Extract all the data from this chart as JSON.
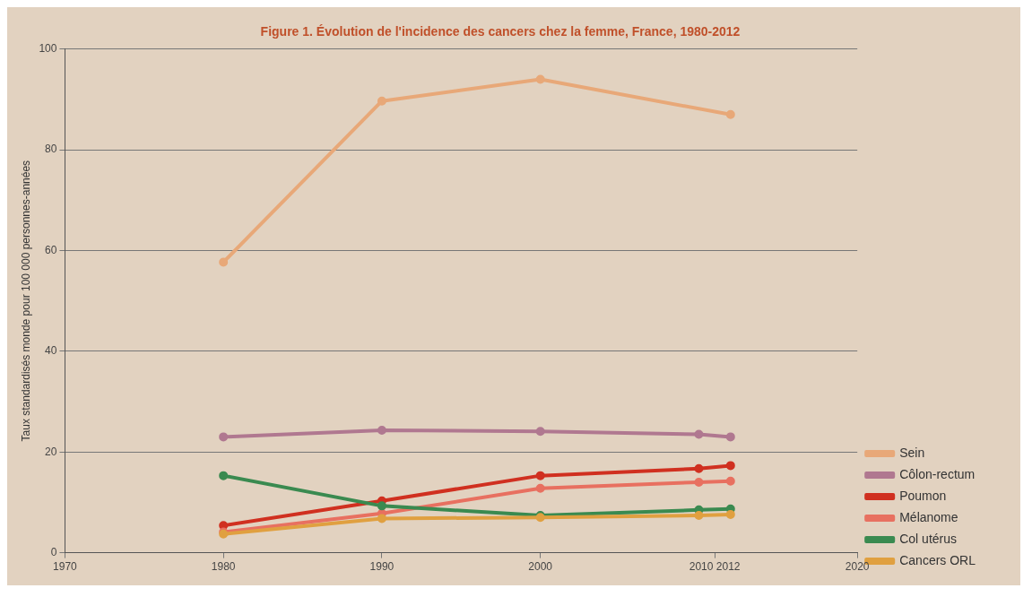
{
  "chart_data": {
    "type": "line",
    "title": "Figure 1. Évolution de l'incidence des cancers chez la femme, France, 1980-2012",
    "ylabel": "Taux standardisés monde pour 100 000 personnes-années",
    "x": [
      1980,
      1990,
      2000,
      2010,
      2012
    ],
    "xlim": [
      1970,
      2020
    ],
    "xticks": [
      1970,
      1980,
      1990,
      2000,
      {
        "value": 2011,
        "label": "2010 2012"
      },
      2020
    ],
    "ylim": [
      0,
      100
    ],
    "yticks": [
      0,
      20,
      40,
      60,
      80,
      100
    ],
    "grid": "y",
    "legend": "bottom right",
    "marker": "circle",
    "line_style": "solid",
    "series": [
      {
        "name": "Sein",
        "color": "#e8a878",
        "x": [
          1980,
          1990,
          2000,
          2012
        ],
        "values": [
          57.7,
          89.7,
          94,
          87
        ]
      },
      {
        "name": "Côlon-rectum",
        "color": "#b07890",
        "values": [
          23,
          24.3,
          24.1,
          23.5,
          23
        ]
      },
      {
        "name": "Poumon",
        "color": "#d03020",
        "values": [
          5.4,
          10.3,
          15.3,
          16.7,
          17.3
        ]
      },
      {
        "name": "Mélanome",
        "color": "#e87060",
        "values": [
          4.1,
          7.8,
          12.8,
          14,
          14.2
        ]
      },
      {
        "name": "Col utérus",
        "color": "#3a8a50",
        "values": [
          15.3,
          9.3,
          7.4,
          8.5,
          8.7
        ]
      },
      {
        "name": "Cancers ORL",
        "color": "#e0a040",
        "values": [
          3.7,
          6.8,
          7,
          7.4,
          7.6
        ]
      }
    ]
  }
}
